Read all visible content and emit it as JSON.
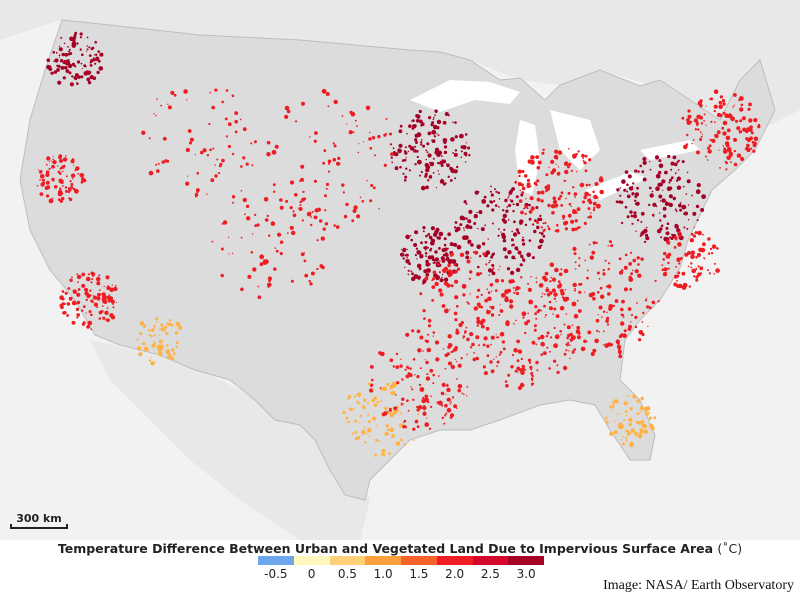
{
  "map": {
    "scale_label": "300 km",
    "colors": {
      "background": "#f2f2f2",
      "land": "#e4e4e4",
      "lakes": "#ffffff",
      "borders": "#bdbdbd",
      "urban_low": "#ffb347",
      "urban_mid": "#ee1d23",
      "urban_high": "#a50026"
    }
  },
  "legend": {
    "title": "Temperature Difference Between Urban and Vegetated Land Due to Impervious Surface Area",
    "unit": "(˚C)",
    "swatches": [
      "#6ea6ee",
      "#fff7bc",
      "#fed179",
      "#fe9f3c",
      "#f5622a",
      "#ee1d23",
      "#d4082a",
      "#a50026"
    ],
    "ticks": [
      "-0.5",
      "0",
      "0.5",
      "1.0",
      "1.5",
      "2.0",
      "2.5",
      "3.0"
    ]
  },
  "credit": "Image: NASA/ Earth Observatory"
}
